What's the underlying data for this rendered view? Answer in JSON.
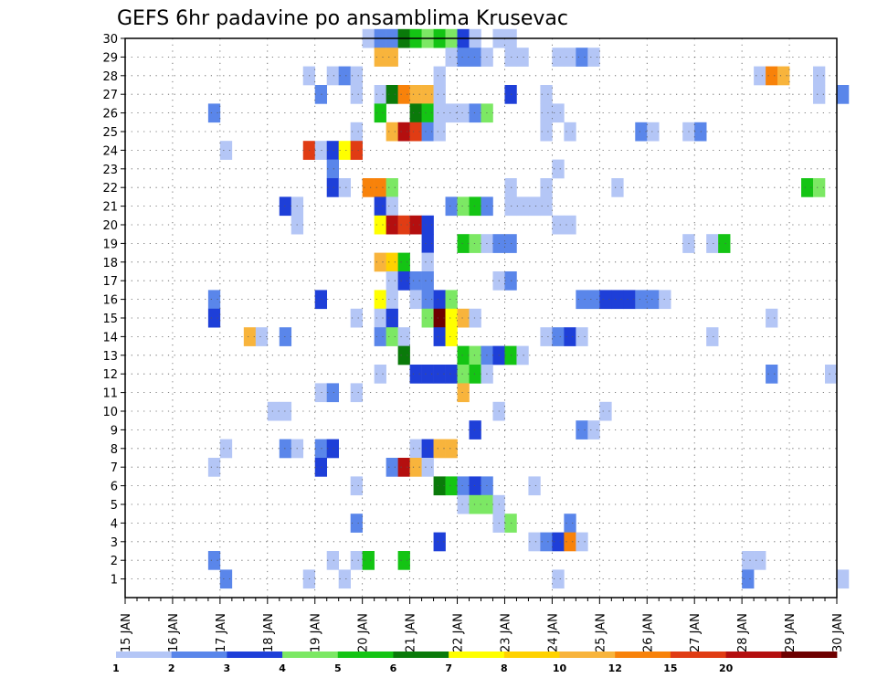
{
  "chart_data": {
    "type": "heatmap",
    "title": "GEFS 6hr padavine po ansamblima Krusevac",
    "xlabel": "",
    "ylabel": "",
    "x_ticks": [
      "15 JAN",
      "16 JAN",
      "17 JAN",
      "18 JAN",
      "19 JAN",
      "20 JAN",
      "21 JAN",
      "22 JAN",
      "23 JAN",
      "24 JAN",
      "25 JAN",
      "26 JAN",
      "27 JAN",
      "28 JAN",
      "29 JAN",
      "30 JAN"
    ],
    "y_ticks": [
      "1",
      "2",
      "3",
      "4",
      "5",
      "6",
      "7",
      "8",
      "9",
      "10",
      "11",
      "12",
      "13",
      "14",
      "15",
      "16",
      "17",
      "18",
      "19",
      "20",
      "21",
      "22",
      "23",
      "24",
      "25",
      "26",
      "27",
      "28",
      "29",
      "30"
    ],
    "ylim": [
      0,
      30
    ],
    "x_steps_per_day": 4,
    "grid": true,
    "legend": {
      "position": "bottom",
      "thresholds": [
        "1",
        "2",
        "3",
        "4",
        "5",
        "6",
        "7",
        "8",
        "10",
        "12",
        "15",
        "20"
      ],
      "colors": [
        "#b4c6f6",
        "#5a86ea",
        "#1e3fd8",
        "#7ce864",
        "#14c414",
        "#0a7a0a",
        "#ffff00",
        "#ffd200",
        "#f8b43c",
        "#f8820a",
        "#e03c14",
        "#b40f0f",
        "#6e0000"
      ]
    },
    "cells": [
      {
        "m": 30,
        "s": [
          [
            20,
            0
          ],
          [
            21,
            1
          ],
          [
            22,
            1
          ],
          [
            23,
            5
          ],
          [
            24,
            4
          ],
          [
            25,
            3
          ],
          [
            26,
            4
          ],
          [
            27,
            3
          ],
          [
            28,
            2
          ],
          [
            29,
            0
          ],
          [
            31,
            0
          ],
          [
            32,
            0
          ]
        ]
      },
      {
        "m": 29,
        "s": [
          [
            21,
            8
          ],
          [
            22,
            8
          ],
          [
            27,
            0
          ],
          [
            28,
            1
          ],
          [
            29,
            1
          ],
          [
            30,
            0
          ],
          [
            32,
            0
          ],
          [
            33,
            0
          ],
          [
            36,
            0
          ],
          [
            37,
            0
          ],
          [
            38,
            1
          ],
          [
            39,
            0
          ]
        ]
      },
      {
        "m": 28,
        "s": [
          [
            15,
            0
          ],
          [
            17,
            0
          ],
          [
            18,
            1
          ],
          [
            19,
            0
          ],
          [
            26,
            0
          ],
          [
            53,
            0
          ],
          [
            54,
            9
          ],
          [
            55,
            8
          ],
          [
            58,
            0
          ]
        ]
      },
      {
        "m": 27,
        "s": [
          [
            16,
            1
          ],
          [
            19,
            0
          ],
          [
            21,
            0
          ],
          [
            22,
            5
          ],
          [
            23,
            9
          ],
          [
            24,
            8
          ],
          [
            25,
            8
          ],
          [
            26,
            0
          ],
          [
            32,
            2
          ],
          [
            35,
            0
          ],
          [
            58,
            0
          ],
          [
            60,
            1
          ]
        ]
      },
      {
        "m": 26,
        "s": [
          [
            7,
            1
          ],
          [
            21,
            4
          ],
          [
            24,
            5
          ],
          [
            25,
            4
          ],
          [
            26,
            0
          ],
          [
            27,
            0
          ],
          [
            28,
            0
          ],
          [
            29,
            1
          ],
          [
            30,
            3
          ],
          [
            35,
            0
          ],
          [
            36,
            0
          ]
        ]
      },
      {
        "m": 25,
        "s": [
          [
            19,
            0
          ],
          [
            22,
            8
          ],
          [
            23,
            11
          ],
          [
            24,
            10
          ],
          [
            25,
            1
          ],
          [
            26,
            0
          ],
          [
            35,
            0
          ],
          [
            37,
            0
          ],
          [
            43,
            1
          ],
          [
            44,
            0
          ],
          [
            47,
            0
          ],
          [
            48,
            1
          ]
        ]
      },
      {
        "m": 24,
        "s": [
          [
            8,
            0
          ],
          [
            15,
            10
          ],
          [
            16,
            0
          ],
          [
            17,
            2
          ],
          [
            18,
            6
          ],
          [
            19,
            10
          ]
        ]
      },
      {
        "m": 23,
        "s": [
          [
            17,
            1
          ],
          [
            36,
            0
          ]
        ]
      },
      {
        "m": 22,
        "s": [
          [
            17,
            2
          ],
          [
            18,
            0
          ],
          [
            20,
            9
          ],
          [
            21,
            9
          ],
          [
            22,
            3
          ],
          [
            32,
            0
          ],
          [
            35,
            0
          ],
          [
            41,
            0
          ],
          [
            57,
            4
          ],
          [
            58,
            3
          ]
        ]
      },
      {
        "m": 21,
        "s": [
          [
            13,
            2
          ],
          [
            14,
            0
          ],
          [
            21,
            2
          ],
          [
            22,
            0
          ],
          [
            27,
            1
          ],
          [
            28,
            3
          ],
          [
            29,
            4
          ],
          [
            30,
            1
          ],
          [
            32,
            0
          ],
          [
            33,
            0
          ],
          [
            34,
            0
          ],
          [
            35,
            0
          ]
        ]
      },
      {
        "m": 20,
        "s": [
          [
            14,
            0
          ],
          [
            21,
            6
          ],
          [
            22,
            11
          ],
          [
            23,
            10
          ],
          [
            24,
            11
          ],
          [
            25,
            2
          ],
          [
            36,
            0
          ],
          [
            37,
            0
          ]
        ]
      },
      {
        "m": 19,
        "s": [
          [
            25,
            2
          ],
          [
            28,
            4
          ],
          [
            29,
            3
          ],
          [
            30,
            0
          ],
          [
            31,
            1
          ],
          [
            32,
            1
          ],
          [
            47,
            0
          ],
          [
            49,
            0
          ],
          [
            50,
            4
          ]
        ]
      },
      {
        "m": 18,
        "s": [
          [
            21,
            8
          ],
          [
            22,
            7
          ],
          [
            23,
            4
          ],
          [
            25,
            0
          ]
        ]
      },
      {
        "m": 17,
        "s": [
          [
            22,
            0
          ],
          [
            23,
            2
          ],
          [
            24,
            1
          ],
          [
            25,
            1
          ],
          [
            31,
            0
          ],
          [
            32,
            1
          ]
        ]
      },
      {
        "m": 16,
        "s": [
          [
            7,
            1
          ],
          [
            16,
            2
          ],
          [
            21,
            6
          ],
          [
            22,
            0
          ],
          [
            24,
            0
          ],
          [
            25,
            1
          ],
          [
            26,
            2
          ],
          [
            27,
            3
          ],
          [
            38,
            1
          ],
          [
            39,
            1
          ],
          [
            40,
            2
          ],
          [
            41,
            2
          ],
          [
            42,
            2
          ],
          [
            43,
            1
          ],
          [
            44,
            1
          ],
          [
            45,
            0
          ]
        ]
      },
      {
        "m": 15,
        "s": [
          [
            7,
            2
          ],
          [
            19,
            0
          ],
          [
            21,
            0
          ],
          [
            22,
            2
          ],
          [
            25,
            3
          ],
          [
            26,
            12
          ],
          [
            27,
            6
          ],
          [
            28,
            8
          ],
          [
            29,
            0
          ],
          [
            54,
            0
          ]
        ]
      },
      {
        "m": 14,
        "s": [
          [
            10,
            8
          ],
          [
            11,
            0
          ],
          [
            13,
            1
          ],
          [
            21,
            1
          ],
          [
            22,
            3
          ],
          [
            23,
            0
          ],
          [
            26,
            2
          ],
          [
            27,
            6
          ],
          [
            35,
            0
          ],
          [
            36,
            1
          ],
          [
            37,
            2
          ],
          [
            38,
            0
          ],
          [
            49,
            0
          ]
        ]
      },
      {
        "m": 13,
        "s": [
          [
            23,
            5
          ],
          [
            28,
            4
          ],
          [
            29,
            3
          ],
          [
            30,
            1
          ],
          [
            31,
            2
          ],
          [
            32,
            4
          ],
          [
            33,
            0
          ]
        ]
      },
      {
        "m": 12,
        "s": [
          [
            21,
            0
          ],
          [
            24,
            2
          ],
          [
            25,
            2
          ],
          [
            26,
            2
          ],
          [
            27,
            2
          ],
          [
            28,
            3
          ],
          [
            29,
            4
          ],
          [
            30,
            0
          ],
          [
            54,
            1
          ],
          [
            59,
            0
          ]
        ]
      },
      {
        "m": 11,
        "s": [
          [
            16,
            0
          ],
          [
            17,
            1
          ],
          [
            19,
            0
          ],
          [
            28,
            8
          ]
        ]
      },
      {
        "m": 10,
        "s": [
          [
            12,
            0
          ],
          [
            13,
            0
          ],
          [
            31,
            0
          ],
          [
            40,
            0
          ]
        ]
      },
      {
        "m": 9,
        "s": [
          [
            29,
            2
          ],
          [
            38,
            1
          ],
          [
            39,
            0
          ]
        ]
      },
      {
        "m": 8,
        "s": [
          [
            8,
            0
          ],
          [
            13,
            1
          ],
          [
            14,
            0
          ],
          [
            16,
            1
          ],
          [
            17,
            2
          ],
          [
            24,
            0
          ],
          [
            25,
            2
          ],
          [
            26,
            8
          ],
          [
            27,
            8
          ]
        ]
      },
      {
        "m": 7,
        "s": [
          [
            7,
            0
          ],
          [
            16,
            2
          ],
          [
            22,
            1
          ],
          [
            23,
            11
          ],
          [
            24,
            8
          ],
          [
            25,
            0
          ]
        ]
      },
      {
        "m": 6,
        "s": [
          [
            19,
            0
          ],
          [
            26,
            5
          ],
          [
            27,
            4
          ],
          [
            28,
            1
          ],
          [
            29,
            2
          ],
          [
            30,
            1
          ],
          [
            34,
            0
          ]
        ]
      },
      {
        "m": 5,
        "s": [
          [
            28,
            0
          ],
          [
            29,
            3
          ],
          [
            30,
            3
          ],
          [
            31,
            0
          ]
        ]
      },
      {
        "m": 4,
        "s": [
          [
            19,
            1
          ],
          [
            31,
            0
          ],
          [
            32,
            3
          ],
          [
            37,
            1
          ]
        ]
      },
      {
        "m": 3,
        "s": [
          [
            26,
            2
          ],
          [
            34,
            0
          ],
          [
            35,
            1
          ],
          [
            36,
            2
          ],
          [
            37,
            9
          ],
          [
            38,
            0
          ]
        ]
      },
      {
        "m": 2,
        "s": [
          [
            7,
            1
          ],
          [
            17,
            0
          ],
          [
            19,
            0
          ],
          [
            20,
            4
          ],
          [
            23,
            4
          ],
          [
            52,
            0
          ],
          [
            53,
            0
          ]
        ]
      },
      {
        "m": 1,
        "s": [
          [
            8,
            1
          ],
          [
            15,
            0
          ],
          [
            18,
            0
          ],
          [
            36,
            0
          ],
          [
            52,
            1
          ],
          [
            60,
            0
          ]
        ]
      }
    ]
  }
}
